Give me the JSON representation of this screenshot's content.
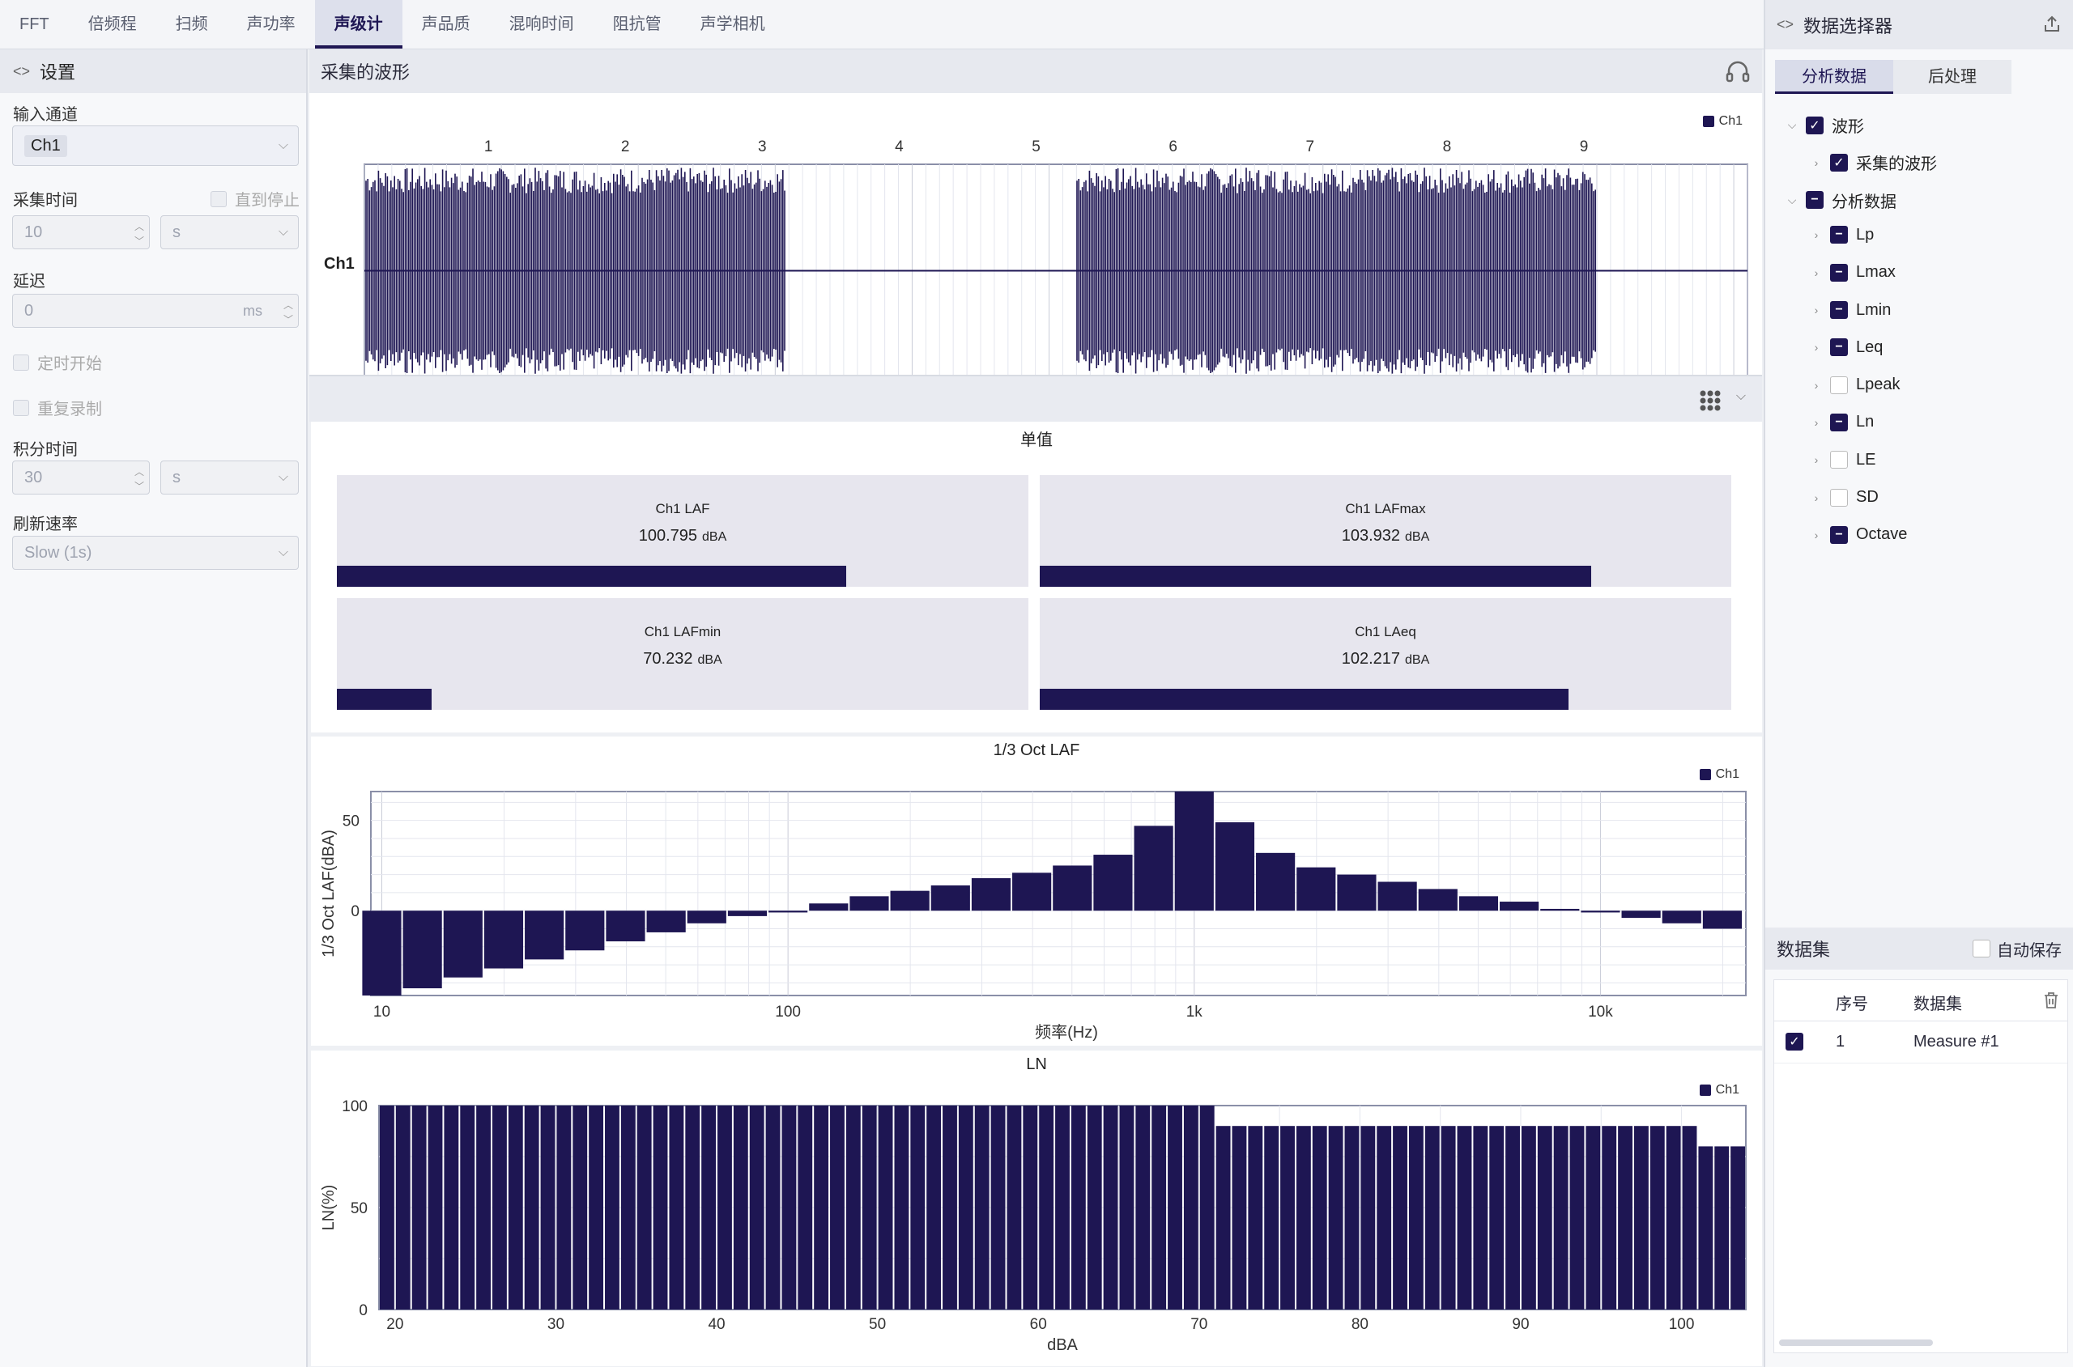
{
  "tabs": [
    "FFT",
    "倍频程",
    "扫频",
    "声功率",
    "声级计",
    "声品质",
    "混响时间",
    "阻抗管",
    "声学相机"
  ],
  "active_tab": 4,
  "settings": {
    "title": "设置",
    "input_channel_label": "输入通道",
    "input_channel_value": "Ch1",
    "acq_time_label": "采集时间",
    "until_stop_label": "直到停止",
    "acq_time_value": "10",
    "acq_time_unit": "s",
    "delay_label": "延迟",
    "delay_value": "0",
    "delay_unit": "ms",
    "timed_start_label": "定时开始",
    "repeat_label": "重复录制",
    "integ_time_label": "积分时间",
    "integ_time_value": "30",
    "integ_time_unit": "s",
    "refresh_label": "刷新速率",
    "refresh_value": "Slow (1s)"
  },
  "waveform": {
    "title": "采集的波形",
    "channel": "Ch1",
    "legend": "Ch1",
    "ticks": [
      "1",
      "2",
      "3",
      "4",
      "5",
      "6",
      "7",
      "8",
      "9"
    ]
  },
  "single_values": {
    "title": "单值",
    "cards": [
      {
        "label": "Ch1 LAF",
        "value": "100.795",
        "unit": "dBA",
        "fill": 0.737
      },
      {
        "label": "Ch1 LAFmax",
        "value": "103.932",
        "unit": "dBA",
        "fill": 0.797
      },
      {
        "label": "Ch1 LAFmin",
        "value": "70.232",
        "unit": "dBA",
        "fill": 0.137
      },
      {
        "label": "Ch1 LAeq",
        "value": "102.217",
        "unit": "dBA",
        "fill": 0.765
      }
    ]
  },
  "chart_data": [
    {
      "type": "bar",
      "title": "1/3 Oct LAF",
      "xlabel": "频率(Hz)",
      "ylabel": "1/3 Oct LAF(dBA)",
      "legend": "Ch1",
      "x_scale": "log",
      "x_ticks": [
        "10",
        "100",
        "1k",
        "10k"
      ],
      "y_ticks": [
        "50",
        "0"
      ],
      "ylim": [
        -47,
        66
      ],
      "categories": [
        "10",
        "12.5",
        "16",
        "20",
        "25",
        "31.5",
        "40",
        "50",
        "63",
        "80",
        "100",
        "125",
        "160",
        "200",
        "250",
        "315",
        "400",
        "500",
        "630",
        "800",
        "1k",
        "1.25k",
        "1.6k",
        "2k",
        "2.5k",
        "3.15k",
        "4k",
        "5k",
        "6.3k",
        "8k",
        "10k",
        "12.5k",
        "16k",
        "20k"
      ],
      "values": [
        -47,
        -43,
        -37,
        -32,
        -27,
        -22,
        -17,
        -12,
        -7,
        -3,
        -1,
        4,
        8,
        11,
        14,
        18,
        21,
        25,
        31,
        47,
        66,
        49,
        32,
        24,
        20,
        16,
        12,
        8,
        5,
        1,
        -1,
        -4,
        -7,
        -10
      ]
    },
    {
      "type": "bar",
      "title": "LN",
      "xlabel": "dBA",
      "ylabel": "LN(%)",
      "legend": "Ch1",
      "x_ticks": [
        "20",
        "30",
        "40",
        "50",
        "60",
        "70",
        "80",
        "90",
        "100"
      ],
      "y_ticks": [
        "100",
        "50",
        "0"
      ],
      "xlim": [
        19,
        104
      ],
      "ylim": [
        0,
        100
      ],
      "x_start": 19,
      "bin_width": 1,
      "values": [
        100,
        100,
        100,
        100,
        100,
        100,
        100,
        100,
        100,
        100,
        100,
        100,
        100,
        100,
        100,
        100,
        100,
        100,
        100,
        100,
        100,
        100,
        100,
        100,
        100,
        100,
        100,
        100,
        100,
        100,
        100,
        100,
        100,
        100,
        100,
        100,
        100,
        100,
        100,
        100,
        100,
        100,
        100,
        100,
        100,
        100,
        100,
        100,
        100,
        100,
        100,
        100,
        90,
        90,
        90,
        90,
        90,
        90,
        90,
        90,
        90,
        90,
        90,
        90,
        90,
        90,
        90,
        90,
        90,
        90,
        90,
        90,
        90,
        90,
        90,
        90,
        90,
        90,
        90,
        90,
        90,
        90,
        80,
        80,
        80
      ]
    }
  ],
  "data_selector": {
    "title": "数据选择器",
    "subtabs": [
      "分析数据",
      "后处理"
    ],
    "tree": [
      {
        "label": "波形",
        "level": 0,
        "state": "checked",
        "expanded": true
      },
      {
        "label": "采集的波形",
        "level": 1,
        "state": "checked"
      },
      {
        "label": "分析数据",
        "level": 0,
        "state": "partial",
        "expanded": true
      },
      {
        "label": "Lp",
        "level": 1,
        "state": "partial"
      },
      {
        "label": "Lmax",
        "level": 1,
        "state": "partial"
      },
      {
        "label": "Lmin",
        "level": 1,
        "state": "partial"
      },
      {
        "label": "Leq",
        "level": 1,
        "state": "partial"
      },
      {
        "label": "Lpeak",
        "level": 1,
        "state": "none"
      },
      {
        "label": "Ln",
        "level": 1,
        "state": "partial"
      },
      {
        "label": "LE",
        "level": 1,
        "state": "none"
      },
      {
        "label": "SD",
        "level": 1,
        "state": "none"
      },
      {
        "label": "Octave",
        "level": 1,
        "state": "partial"
      }
    ]
  },
  "datasets": {
    "title": "数据集",
    "autosave_label": "自动保存",
    "col_index": "序号",
    "col_name": "数据集",
    "rows": [
      {
        "index": "1",
        "name": "Measure #1",
        "checked": true
      }
    ]
  },
  "colors": {
    "accent": "#1e1653"
  }
}
